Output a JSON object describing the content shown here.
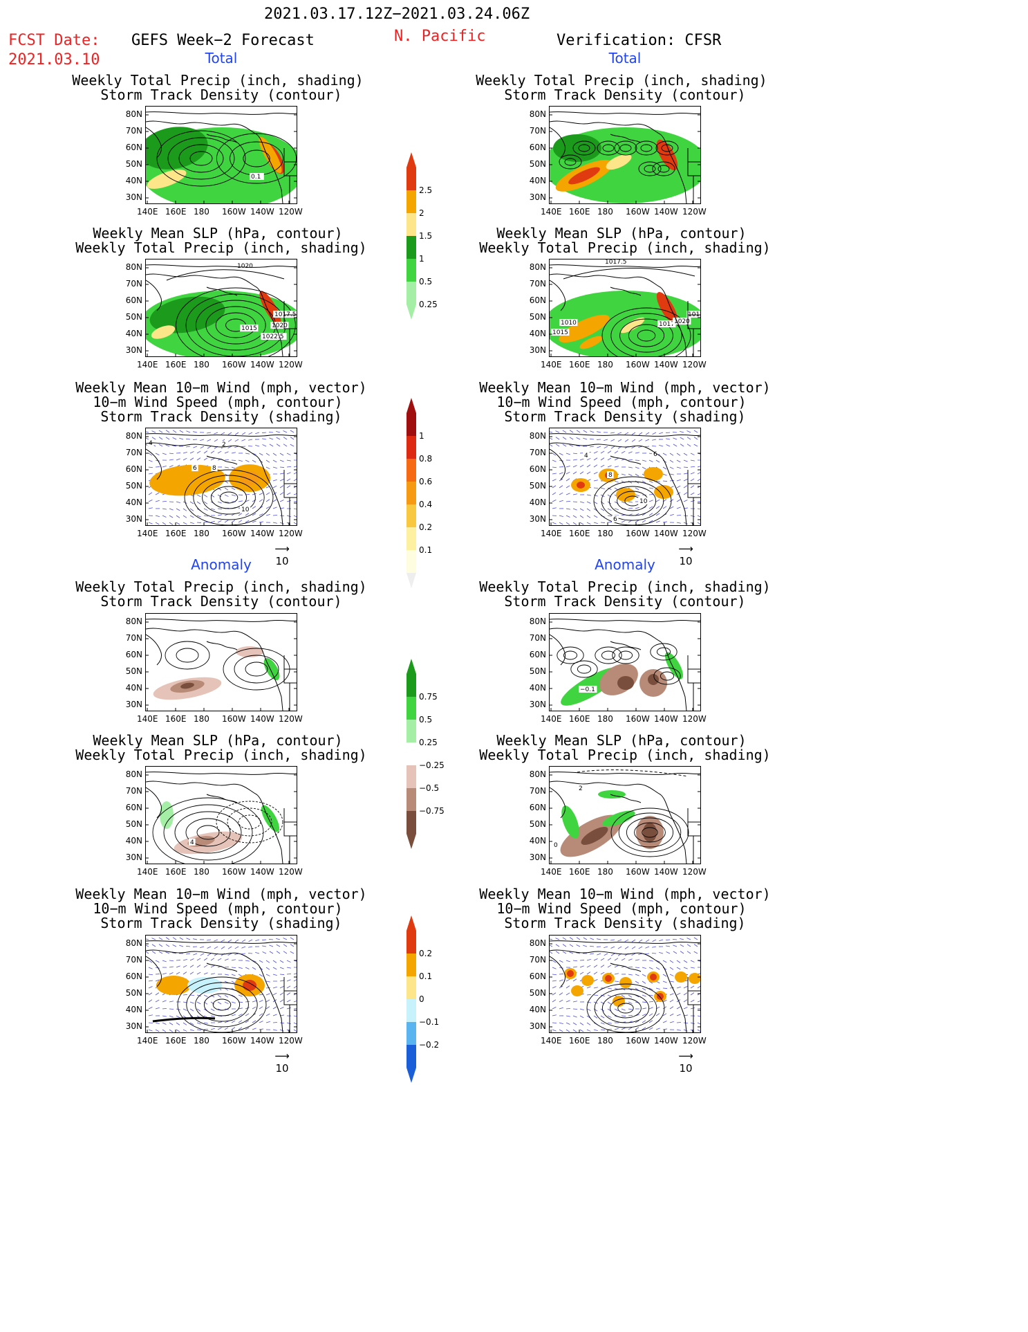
{
  "header": {
    "date_range": "2021.03.17.12Z−2021.03.24.06Z",
    "fcst_label": "FCST Date:",
    "fcst_date": "2021.03.10",
    "forecast_title": "GEFS Week−2 Forecast",
    "region": "N. Pacific",
    "verification_title": "Verification: CFSR"
  },
  "sections": {
    "total": "Total",
    "anomaly": "Anomaly"
  },
  "titles": {
    "precip_storm": [
      "Weekly Total Precip (inch, shading)",
      "Storm Track Density (contour)"
    ],
    "slp_precip": [
      "Weekly Mean SLP (hPa, contour)",
      "Weekly Total Precip (inch, shading)"
    ],
    "wind_storm": [
      "Weekly Mean 10−m Wind (mph, vector)",
      "10−m Wind Speed (mph, contour)",
      "Storm Track Density (shading)"
    ]
  },
  "axes": {
    "lat_labels": [
      "80N",
      "70N",
      "60N",
      "50N",
      "40N",
      "30N"
    ],
    "lon_labels": [
      "140E",
      "160E",
      "180",
      "160W",
      "140W",
      "120W"
    ],
    "vector_ref": "10"
  },
  "contour_labels": {
    "g_total_precip": [
      "0.1"
    ],
    "g_total_slp": [
      "1020",
      "1017.5",
      "1015",
      "1020",
      "1022.5"
    ],
    "v_total_slp": [
      "1017.5",
      "1010",
      "1015",
      "1017",
      "1020",
      "1012"
    ],
    "g_total_wind": [
      "2",
      "4",
      "6",
      "8",
      "10"
    ],
    "v_total_wind": [
      "4",
      "6",
      "8",
      "10",
      "6"
    ],
    "v_anom_precip": [
      "−0.1"
    ],
    "g_anom_slp": [
      "4"
    ],
    "v_anom_slp": [
      "2",
      "0"
    ]
  },
  "colorbars": {
    "precip_total": {
      "labels": [
        "2.5",
        "2",
        "1.5",
        "1",
        "0.5",
        "0.25"
      ],
      "colors": [
        "#e03a10",
        "#f5a500",
        "#fde68a",
        "#1b9a1b",
        "#41d441",
        "#a5eea5"
      ]
    },
    "storm_density_total": {
      "labels": [
        "1",
        "0.8",
        "0.6",
        "0.4",
        "0.2",
        "0.1"
      ],
      "colors": [
        "#a00f0f",
        "#dd2a12",
        "#f56a12",
        "#f59a12",
        "#f8c840",
        "#fdf0a0",
        "#fffde0"
      ]
    },
    "precip_anomaly": {
      "labels": [
        "0.75",
        "0.5",
        "0.25",
        "−0.25",
        "−0.5",
        "−0.75"
      ],
      "colors": [
        "#1b9a1b",
        "#41d441",
        "#a5eea5",
        "#ffffff",
        "#e6c3b8",
        "#b88a78",
        "#7a4e3c"
      ]
    },
    "storm_density_anomaly": {
      "labels": [
        "0.2",
        "0.1",
        "0",
        "−0.1",
        "−0.2"
      ],
      "colors": [
        "#e03a10",
        "#f5a500",
        "#fde68a",
        "#c8f2fb",
        "#5ab4f0",
        "#1a5ed8"
      ]
    }
  },
  "map_colors": {
    "green_dark": "#1b9a1b",
    "green": "#41d441",
    "green_light": "#a5eea5",
    "yellow": "#fde68a",
    "orange": "#f5a500",
    "red": "#e03a10",
    "brown_light": "#e6c3b8",
    "brown": "#b88a78",
    "brown_dark": "#7a4e3c",
    "vector_blue": "#4a4ae0",
    "cyan": "#c8f2fb"
  }
}
